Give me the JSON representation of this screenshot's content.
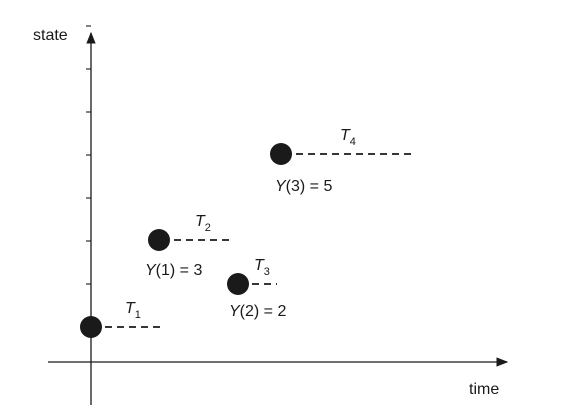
{
  "axes": {
    "y_label": "state",
    "x_label": "time",
    "y_ticks": [
      1,
      2,
      3,
      4,
      5,
      6,
      7
    ]
  },
  "points": [
    {
      "id": "p0",
      "state": 0,
      "duration_label": {
        "T": "T",
        "sub": "1"
      },
      "value_label": null
    },
    {
      "id": "p1",
      "state": 3,
      "duration_label": {
        "T": "T",
        "sub": "2"
      },
      "value_label": {
        "Y": "Y",
        "rest": "(1) = 3"
      }
    },
    {
      "id": "p2",
      "state": 2,
      "duration_label": {
        "T": "T",
        "sub": "3"
      },
      "value_label": {
        "Y": "Y",
        "rest": "(2) = 2"
      }
    },
    {
      "id": "p3",
      "state": 5,
      "duration_label": {
        "T": "T",
        "sub": "4"
      },
      "value_label": {
        "Y": "Y",
        "rest": "(3) = 5"
      }
    }
  ]
}
